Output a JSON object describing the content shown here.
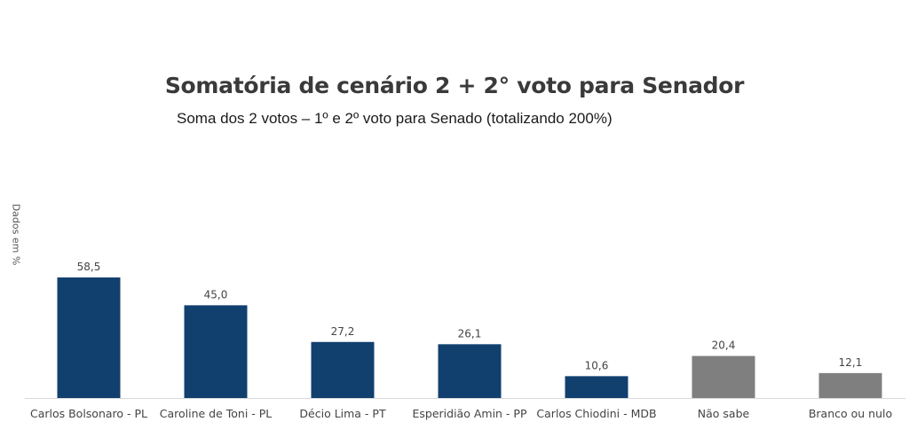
{
  "chart_data": {
    "type": "bar",
    "title": "Somatória de cenário 2 + 2° voto para Senador",
    "subtitle": "Soma dos 2 votos – 1º e 2º voto para Senado (totalizando 200%)",
    "ylabel": "Dados em %",
    "xlabel": "",
    "ylim": [
      0,
      60
    ],
    "grid": false,
    "categories": [
      "Carlos Bolsonaro - PL",
      "Caroline de Toni - PL",
      "Décio Lima - PT",
      "Esperidião Amin - PP",
      "Carlos Chiodini - MDB",
      "Não sabe",
      "Branco ou nulo"
    ],
    "values": [
      58.5,
      45.0,
      27.2,
      26.1,
      10.6,
      20.4,
      12.1
    ],
    "value_labels": [
      "58,5",
      "45,0",
      "27,2",
      "26,1",
      "10,6",
      "20,4",
      "12,1"
    ],
    "colors": [
      "#11406e",
      "#11406e",
      "#11406e",
      "#11406e",
      "#11406e",
      "#7f7f7f",
      "#7f7f7f"
    ]
  }
}
